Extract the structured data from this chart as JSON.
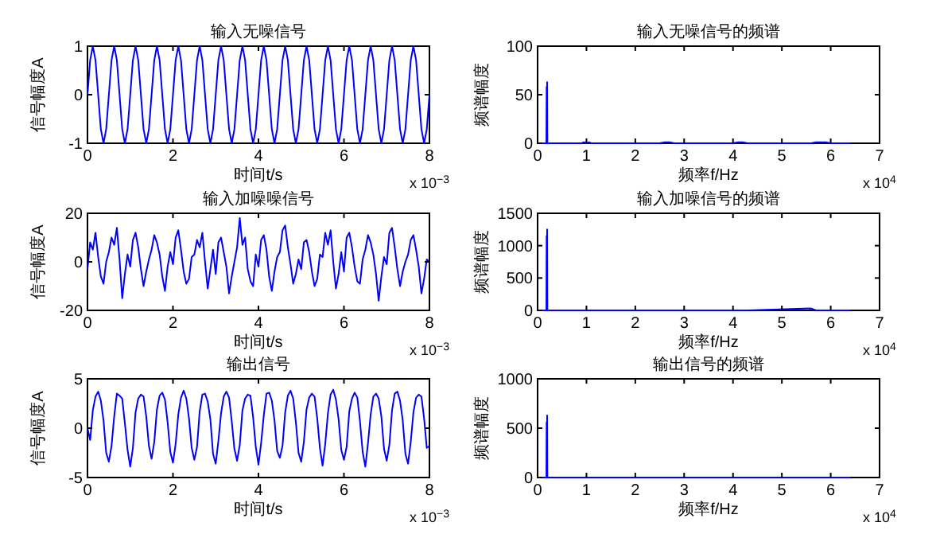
{
  "chart_data": [
    {
      "type": "line",
      "title": "输入无噪信号",
      "xlabel": "时间t/s",
      "ylabel": "信号幅度A",
      "xlim": [
        0,
        8
      ],
      "xticks": [
        0,
        2,
        4,
        6,
        8
      ],
      "ylim": [
        -1,
        1
      ],
      "yticks": [
        -1,
        0,
        1
      ],
      "annotations": [
        "x 10$^{−3}$"
      ],
      "series": [
        {
          "color": "#0000ff",
          "x": [
            0,
            0.0625,
            0.125,
            0.1875,
            0.25,
            0.3125,
            0.375,
            0.4375,
            0.5,
            0.5625,
            0.625,
            0.6875,
            0.75,
            0.8125,
            0.875,
            0.9375,
            1,
            1.0625,
            1.125,
            1.1875,
            1.25,
            1.3125,
            1.375,
            1.4375,
            1.5,
            1.5625,
            1.625,
            1.6875,
            1.75,
            1.8125,
            1.875,
            1.9375,
            2,
            2.0625,
            2.125,
            2.1875,
            2.25,
            2.3125,
            2.375,
            2.4375,
            2.5,
            2.5625,
            2.625,
            2.6875,
            2.75,
            2.8125,
            2.875,
            2.9375,
            3,
            3.0625,
            3.125,
            3.1875,
            3.25,
            3.3125,
            3.375,
            3.4375,
            3.5,
            3.5625,
            3.625,
            3.6875,
            3.75,
            3.8125,
            3.875,
            3.9375,
            4,
            4.0625,
            4.125,
            4.1875,
            4.25,
            4.3125,
            4.375,
            4.4375,
            4.5,
            4.5625,
            4.625,
            4.6875,
            4.75,
            4.8125,
            4.875,
            4.9375,
            5,
            5.0625,
            5.125,
            5.1875,
            5.25,
            5.3125,
            5.375,
            5.4375,
            5.5,
            5.5625,
            5.625,
            5.6875,
            5.75,
            5.8125,
            5.875,
            5.9375,
            6,
            6.0625,
            6.125,
            6.1875,
            6.25,
            6.3125,
            6.375,
            6.4375,
            6.5,
            6.5625,
            6.625,
            6.6875,
            6.75,
            6.8125,
            6.875,
            6.9375,
            7,
            7.0625,
            7.125,
            7.1875,
            7.25,
            7.3125,
            7.375,
            7.4375,
            7.5,
            7.5625,
            7.625,
            7.6875,
            7.75,
            7.8125,
            7.875,
            7.9375,
            8
          ],
          "values": [
            0,
            0.71,
            1,
            0.71,
            0,
            -0.71,
            -1,
            -0.71,
            0,
            0.71,
            1,
            0.71,
            0,
            -0.71,
            -1,
            -0.71,
            0,
            0.71,
            1,
            0.71,
            0,
            -0.71,
            -1,
            -0.71,
            0,
            0.71,
            1,
            0.71,
            0,
            -0.71,
            -1,
            -0.71,
            0,
            0.71,
            1,
            0.71,
            0,
            -0.71,
            -1,
            -0.71,
            0,
            0.71,
            1,
            0.71,
            0,
            -0.71,
            -1,
            -0.71,
            0,
            0.71,
            1,
            0.71,
            0,
            -0.71,
            -1,
            -0.71,
            0,
            0.71,
            1,
            0.71,
            0,
            -0.71,
            -1,
            -0.71,
            0,
            0.71,
            1,
            0.71,
            0,
            -0.71,
            -1,
            -0.71,
            0,
            0.71,
            1,
            0.71,
            0,
            -0.71,
            -1,
            -0.71,
            0,
            0.71,
            1,
            0.71,
            0,
            -0.71,
            -1,
            -0.71,
            0,
            0.71,
            1,
            0.71,
            0,
            -0.71,
            -1,
            -0.71,
            0,
            0.71,
            1,
            0.71,
            0,
            -0.71,
            -1,
            -0.71,
            0,
            0.71,
            1,
            0.71,
            0,
            -0.71,
            -1,
            -0.71,
            0,
            0.71,
            1,
            0.71,
            0,
            -0.71,
            -1,
            -0.71,
            0,
            0.71,
            1,
            0.71,
            0,
            -0.71,
            -1,
            -0.71,
            0
          ]
        }
      ]
    },
    {
      "type": "line",
      "title": "输入无噪信号的频谱",
      "xlabel": "频率f/Hz",
      "ylabel": "频谱幅度",
      "xlim": [
        0,
        7
      ],
      "xticks": [
        0,
        1,
        2,
        3,
        4,
        5,
        6,
        7
      ],
      "ylim": [
        0,
        100
      ],
      "yticks": [
        0,
        50,
        100
      ],
      "annotations": [
        "x 10$^{4}$"
      ],
      "series": [
        {
          "color": "#0000ff",
          "x": [
            0,
            0.17,
            0.18,
            0.185,
            0.19,
            0.195,
            0.2,
            0.205,
            0.21,
            0.9,
            0.95,
            1.0,
            1.05,
            1.1,
            2.5,
            2.6,
            2.7,
            2.8,
            4.0,
            4.1,
            4.2,
            4.3,
            5.6,
            5.7,
            5.8,
            5.9,
            6.0,
            6.4
          ],
          "values": [
            0,
            0,
            0,
            58,
            0,
            63,
            0,
            0,
            0,
            0,
            1,
            0,
            1,
            0,
            0,
            1,
            1,
            0,
            0,
            1,
            1,
            0,
            0,
            1,
            1,
            1,
            0,
            0
          ]
        }
      ]
    },
    {
      "type": "line",
      "title": "输入加噪噪信号",
      "xlabel": "时间t/s",
      "ylabel": "信号幅度A",
      "xlim": [
        0,
        8
      ],
      "xticks": [
        0,
        2,
        4,
        6,
        8
      ],
      "ylim": [
        -20,
        20
      ],
      "yticks": [
        -20,
        0,
        20
      ],
      "annotations": [
        "x 10$^{−3}$"
      ],
      "series": [
        {
          "color": "#0000ff",
          "x": [
            0,
            0.0625,
            0.125,
            0.1875,
            0.25,
            0.3125,
            0.375,
            0.4375,
            0.5,
            0.5625,
            0.625,
            0.6875,
            0.75,
            0.8125,
            0.875,
            0.9375,
            1,
            1.0625,
            1.125,
            1.1875,
            1.25,
            1.3125,
            1.375,
            1.4375,
            1.5,
            1.5625,
            1.625,
            1.6875,
            1.75,
            1.8125,
            1.875,
            1.9375,
            2,
            2.0625,
            2.125,
            2.1875,
            2.25,
            2.3125,
            2.375,
            2.4375,
            2.5,
            2.5625,
            2.625,
            2.6875,
            2.75,
            2.8125,
            2.875,
            2.9375,
            3,
            3.0625,
            3.125,
            3.1875,
            3.25,
            3.3125,
            3.375,
            3.4375,
            3.5,
            3.5625,
            3.625,
            3.6875,
            3.75,
            3.8125,
            3.875,
            3.9375,
            4,
            4.0625,
            4.125,
            4.1875,
            4.25,
            4.3125,
            4.375,
            4.4375,
            4.5,
            4.5625,
            4.625,
            4.6875,
            4.75,
            4.8125,
            4.875,
            4.9375,
            5,
            5.0625,
            5.125,
            5.1875,
            5.25,
            5.3125,
            5.375,
            5.4375,
            5.5,
            5.5625,
            5.625,
            5.6875,
            5.75,
            5.8125,
            5.875,
            5.9375,
            6,
            6.0625,
            6.125,
            6.1875,
            6.25,
            6.3125,
            6.375,
            6.4375,
            6.5,
            6.5625,
            6.625,
            6.6875,
            6.75,
            6.8125,
            6.875,
            6.9375,
            7,
            7.0625,
            7.125,
            7.1875,
            7.25,
            7.3125,
            7.375,
            7.4375,
            7.5,
            7.5625,
            7.625,
            7.6875,
            7.75,
            7.8125,
            7.875,
            7.9375,
            8
          ],
          "values": [
            -3,
            8,
            5,
            12,
            2,
            -6,
            -9,
            0,
            4,
            10,
            7,
            14,
            1,
            -15,
            -5,
            3,
            -2,
            9,
            12,
            6,
            -3,
            -10,
            -4,
            1,
            5,
            11,
            8,
            3,
            -6,
            -12,
            -2,
            4,
            -1,
            10,
            13,
            5,
            -4,
            -9,
            -7,
            2,
            3,
            9,
            6,
            12,
            0,
            -11,
            -3,
            5,
            -5,
            8,
            10,
            4,
            -2,
            -13,
            -6,
            0,
            6,
            18,
            7,
            10,
            -3,
            -8,
            -10,
            3,
            -2,
            9,
            11,
            5,
            -6,
            -12,
            -4,
            2,
            4,
            13,
            15,
            6,
            -1,
            -9,
            -5,
            1,
            -3,
            8,
            9,
            4,
            -4,
            -10,
            -7,
            3,
            2,
            12,
            7,
            13,
            0,
            -11,
            -5,
            4,
            -4,
            10,
            12,
            6,
            -2,
            -8,
            -9,
            1,
            5,
            11,
            8,
            3,
            -5,
            -16,
            -6,
            2,
            -1,
            12,
            14,
            6,
            -3,
            -10,
            -4,
            0,
            3,
            9,
            11,
            5,
            -2,
            -13,
            -7,
            1,
            0
          ]
        }
      ]
    },
    {
      "type": "line",
      "title": "输入加噪信号的频谱",
      "xlabel": "频率f/Hz",
      "ylabel": "频谱幅度",
      "xlim": [
        0,
        7
      ],
      "xticks": [
        0,
        1,
        2,
        3,
        4,
        5,
        6,
        7
      ],
      "ylim": [
        0,
        1500
      ],
      "yticks": [
        0,
        500,
        1000,
        1500
      ],
      "annotations": [
        "x 10$^{4}$"
      ],
      "series": [
        {
          "color": "#0000ff",
          "x": [
            0,
            0.17,
            0.18,
            0.185,
            0.19,
            0.195,
            0.2,
            0.205,
            0.21,
            0.9,
            0.95,
            1.0,
            1.05,
            1.1,
            2.5,
            2.6,
            2.7,
            2.8,
            4.0,
            4.1,
            4.2,
            4.3,
            5.6,
            5.7,
            5.8,
            5.9,
            6.0,
            6.4
          ],
          "values": [
            0,
            0,
            0,
            1150,
            0,
            1250,
            0,
            0,
            0,
            0,
            0,
            0,
            0,
            0,
            0,
            0,
            0,
            0,
            0,
            0,
            0,
            0,
            30,
            0,
            0,
            0,
            0,
            0
          ]
        }
      ]
    },
    {
      "type": "line",
      "title": "输出信号",
      "xlabel": "时间t/s",
      "ylabel": "信号幅度A",
      "xlim": [
        0,
        8
      ],
      "xticks": [
        0,
        2,
        4,
        6,
        8
      ],
      "ylim": [
        -5,
        5
      ],
      "yticks": [
        -5,
        0,
        5
      ],
      "annotations": [
        "x 10$^{−3}$"
      ],
      "series": [
        {
          "color": "#0000ff",
          "x": [
            0,
            0.0625,
            0.125,
            0.1875,
            0.25,
            0.3125,
            0.375,
            0.4375,
            0.5,
            0.5625,
            0.625,
            0.6875,
            0.75,
            0.8125,
            0.875,
            0.9375,
            1,
            1.0625,
            1.125,
            1.1875,
            1.25,
            1.3125,
            1.375,
            1.4375,
            1.5,
            1.5625,
            1.625,
            1.6875,
            1.75,
            1.8125,
            1.875,
            1.9375,
            2,
            2.0625,
            2.125,
            2.1875,
            2.25,
            2.3125,
            2.375,
            2.4375,
            2.5,
            2.5625,
            2.625,
            2.6875,
            2.75,
            2.8125,
            2.875,
            2.9375,
            3,
            3.0625,
            3.125,
            3.1875,
            3.25,
            3.3125,
            3.375,
            3.4375,
            3.5,
            3.5625,
            3.625,
            3.6875,
            3.75,
            3.8125,
            3.875,
            3.9375,
            4,
            4.0625,
            4.125,
            4.1875,
            4.25,
            4.3125,
            4.375,
            4.4375,
            4.5,
            4.5625,
            4.625,
            4.6875,
            4.75,
            4.8125,
            4.875,
            4.9375,
            5,
            5.0625,
            5.125,
            5.1875,
            5.25,
            5.3125,
            5.375,
            5.4375,
            5.5,
            5.5625,
            5.625,
            5.6875,
            5.75,
            5.8125,
            5.875,
            5.9375,
            6,
            6.0625,
            6.125,
            6.1875,
            6.25,
            6.3125,
            6.375,
            6.4375,
            6.5,
            6.5625,
            6.625,
            6.6875,
            6.75,
            6.8125,
            6.875,
            6.9375,
            7,
            7.0625,
            7.125,
            7.1875,
            7.25,
            7.3125,
            7.375,
            7.4375,
            7.5,
            7.5625,
            7.625,
            7.6875,
            7.75,
            7.8125,
            7.875,
            7.9375,
            8
          ],
          "values": [
            0,
            -1.2,
            1.8,
            3.2,
            3.7,
            2.8,
            0.8,
            -2.5,
            -3.4,
            -1.8,
            1.2,
            3.5,
            3.3,
            3.0,
            0.5,
            -2.2,
            -3.9,
            -2.0,
            1.6,
            3.0,
            3.4,
            3.2,
            1.2,
            -1.8,
            -3.1,
            -1.4,
            1.9,
            3.3,
            3.6,
            2.9,
            0.6,
            -2.4,
            -3.5,
            -1.6,
            1.4,
            3.1,
            3.8,
            3.0,
            1.0,
            -2.0,
            -3.2,
            -1.9,
            1.7,
            3.4,
            3.5,
            2.7,
            0.9,
            -2.6,
            -3.6,
            -1.3,
            1.5,
            3.2,
            3.7,
            3.1,
            0.7,
            -2.1,
            -3.3,
            -1.7,
            1.8,
            3.0,
            3.4,
            3.3,
            1.1,
            -1.9,
            -3.7,
            -1.5,
            1.3,
            3.5,
            3.6,
            2.8,
            0.8,
            -2.3,
            -3.0,
            -1.8,
            1.6,
            3.3,
            3.8,
            3.0,
            0.6,
            -2.5,
            -3.4,
            -1.4,
            1.9,
            3.1,
            3.5,
            3.2,
            1.0,
            -2.0,
            -3.8,
            -1.6,
            1.5,
            3.4,
            3.9,
            2.9,
            0.9,
            -2.2,
            -3.2,
            -1.9,
            1.7,
            3.0,
            3.6,
            3.1,
            0.7,
            -2.4,
            -3.9,
            -1.5,
            1.4,
            3.2,
            3.5,
            3.0,
            1.2,
            -2.1,
            -3.3,
            -1.7,
            1.8,
            3.5,
            3.7,
            2.8,
            0.8,
            -2.6,
            -3.6,
            -1.4,
            1.6,
            3.1,
            3.4,
            3.2,
            1.0,
            -2.0,
            -1.8
          ]
        }
      ]
    },
    {
      "type": "line",
      "title": "输出信号的频谱",
      "xlabel": "频率f/Hz",
      "ylabel": "频谱幅度",
      "xlim": [
        0,
        7
      ],
      "xticks": [
        0,
        1,
        2,
        3,
        4,
        5,
        6,
        7
      ],
      "ylim": [
        0,
        1000
      ],
      "yticks": [
        0,
        500,
        1000
      ],
      "annotations": [
        "x 10$^{4}$"
      ],
      "series": [
        {
          "color": "#0000ff",
          "x": [
            0,
            0.17,
            0.18,
            0.185,
            0.19,
            0.195,
            0.2,
            0.205,
            0.21,
            0.9,
            0.95,
            1.0,
            1.05,
            1.1,
            2.5,
            2.6,
            2.7,
            2.8,
            4.0,
            4.1,
            4.2,
            4.3,
            5.6,
            5.7,
            5.8,
            5.9,
            6.0,
            6.4
          ],
          "values": [
            0,
            0,
            0,
            560,
            0,
            630,
            0,
            0,
            0,
            0,
            0,
            0,
            0,
            0,
            0,
            0,
            0,
            0,
            0,
            0,
            0,
            0,
            0,
            0,
            0,
            0,
            0,
            0
          ]
        }
      ]
    }
  ]
}
